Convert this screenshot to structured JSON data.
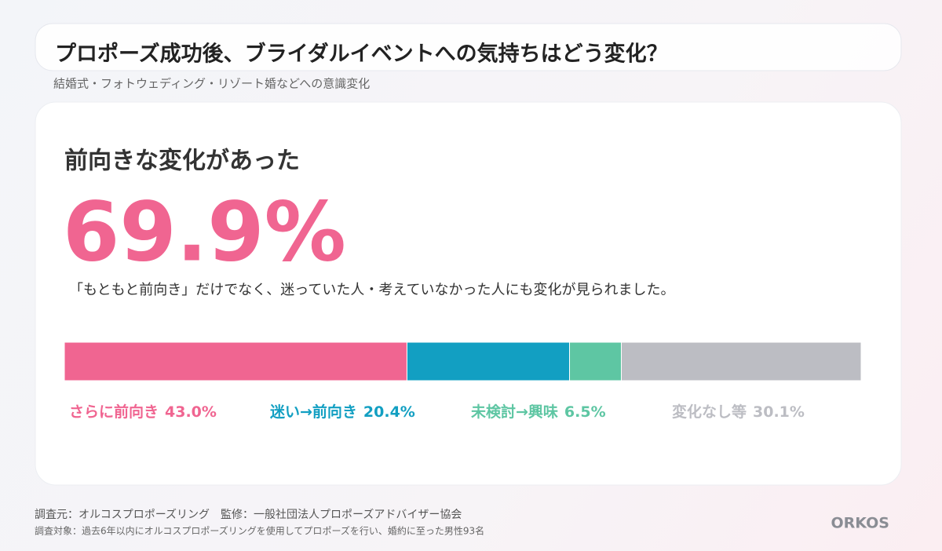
{
  "chart_data": {
    "type": "bar",
    "title": "プロポーズ成功後、ブライダルイベントへの気持ちはどう変化？",
    "subtitle": "結婚式・フォトウェディング・リゾート婚などへの意識変化",
    "heading": "前向きな変化があった",
    "highlight": {
      "value": 69.9,
      "label": "69.9%"
    },
    "caption": "「もともと前向き」だけでなく、迷っていた人・考えていなかった人にも変化が見られました。",
    "series": [
      {
        "name": "さらに前向き",
        "color": "#f06591",
        "values": [
          43.0
        ],
        "value_labels": [
          "43.0%"
        ]
      },
      {
        "name": "迷い→前向き",
        "color": "#129fc2",
        "values": [
          20.4
        ],
        "value_labels": [
          "20.4%"
        ]
      },
      {
        "name": "未検討→興味",
        "color": "#5ec6a3",
        "values": [
          6.5
        ],
        "value_labels": [
          "6.5%"
        ]
      },
      {
        "name": "変化なし等",
        "color": "#bcbdc3",
        "values": [
          30.1
        ],
        "value_labels": [
          "30.1%"
        ]
      }
    ],
    "source": "調査元：オルコスプロポーズリング　監修：一般社団法人プロポーズアドバイザー協会",
    "note": "調査対象：過去6年以内にオルコスプロポーズリングを使用してプロポーズを行い、婚約に至った男性93名",
    "brand": "ORKOS"
  }
}
